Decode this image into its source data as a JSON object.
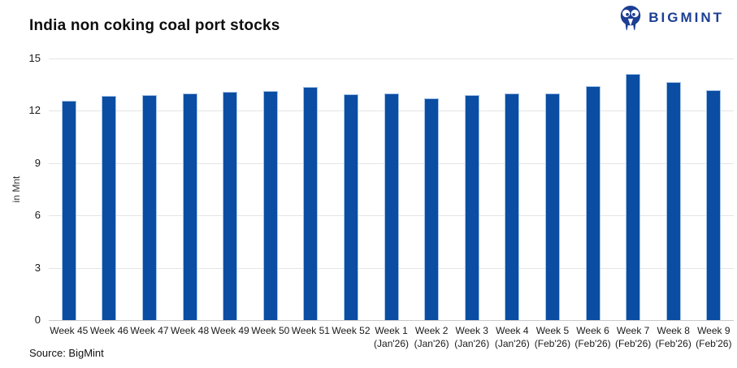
{
  "header": {
    "brand": {
      "name": "BIGMINT",
      "color": "#1c3e93"
    }
  },
  "footer": {
    "source": "Source: BigMint"
  },
  "chart_data": {
    "type": "bar",
    "title": "India non coking coal port stocks",
    "xlabel": "",
    "ylabel": "in Mnt",
    "ylim": [
      0,
      15
    ],
    "yticks": [
      0,
      3,
      6,
      9,
      12,
      15
    ],
    "grid": "horizontal",
    "legend": "none",
    "bar_color": "#0a4da3",
    "bar_edge_color": "#a6c4e7",
    "gridline_color": "#e4e4e4",
    "categories": [
      "Week 45",
      "Week 46",
      "Week 47",
      "Week 48",
      "Week 49",
      "Week 50",
      "Week 51",
      "Week 52",
      "Week 1 (Jan'26)",
      "Week 2 (Jan'26)",
      "Week 3 (Jan'26)",
      "Week 4 (Jan'26)",
      "Week 5 (Feb'26)",
      "Week 6 (Feb'26)",
      "Week 7 (Feb'26)",
      "Week 8 (Feb'26)",
      "Week 9 (Feb'26)"
    ],
    "x_tick_lines": [
      [
        "Week 45"
      ],
      [
        "Week 46"
      ],
      [
        "Week 47"
      ],
      [
        "Week 48"
      ],
      [
        "Week 49"
      ],
      [
        "Week 50"
      ],
      [
        "Week 51"
      ],
      [
        "Week 52"
      ],
      [
        "Week 1",
        "(Jan'26)"
      ],
      [
        "Week 2",
        "(Jan'26)"
      ],
      [
        "Week 3",
        "(Jan'26)"
      ],
      [
        "Week 4",
        "(Jan'26)"
      ],
      [
        "Week 5",
        "(Feb'26)"
      ],
      [
        "Week 6",
        "(Feb'26)"
      ],
      [
        "Week 7",
        "(Feb'26)"
      ],
      [
        "Week 8",
        "(Feb'26)"
      ],
      [
        "Week 9",
        "(Feb'26)"
      ]
    ],
    "values": [
      12.6,
      12.85,
      12.9,
      13.0,
      13.1,
      13.15,
      13.35,
      12.95,
      13.0,
      12.7,
      12.9,
      13.0,
      13.0,
      13.4,
      14.1,
      13.65,
      13.2
    ]
  }
}
